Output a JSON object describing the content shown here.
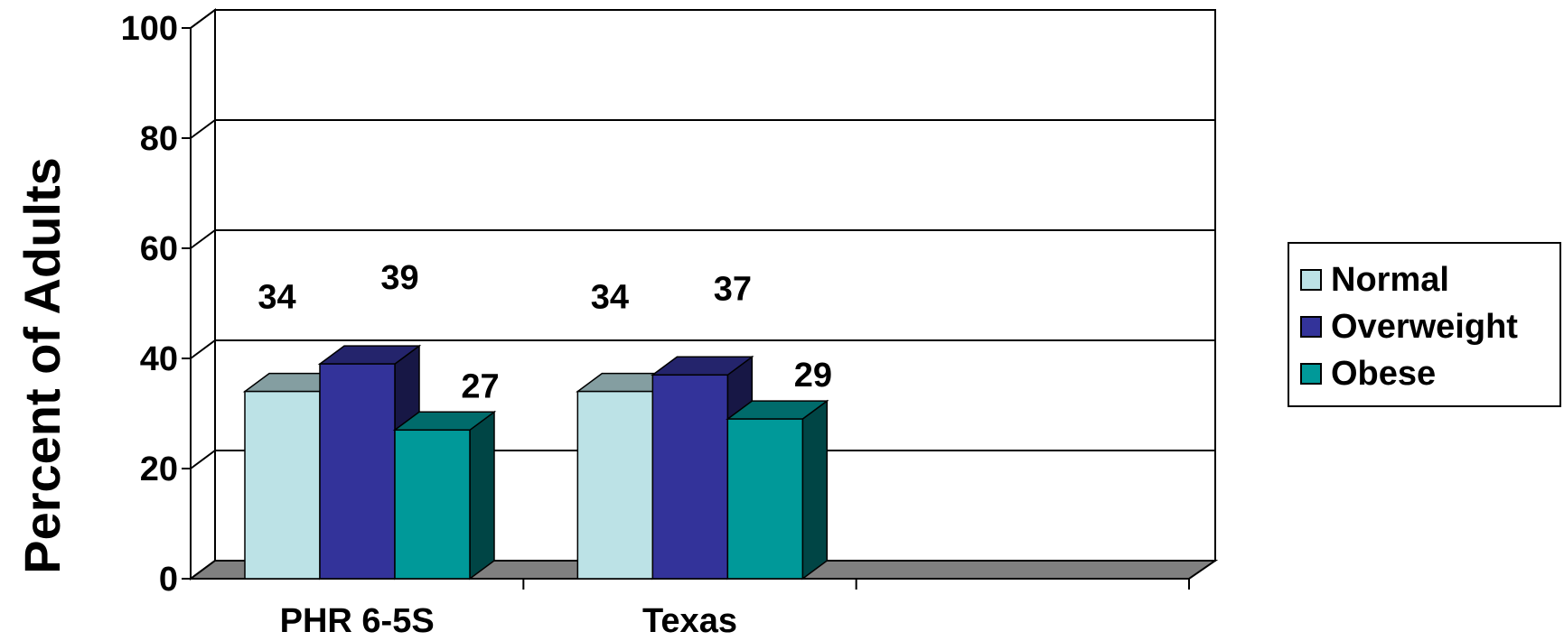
{
  "chart_data": {
    "type": "bar",
    "title": "",
    "xlabel": "",
    "ylabel": "Percent of Adults",
    "ylim": [
      0,
      100
    ],
    "yticks": [
      0,
      20,
      40,
      60,
      80,
      100
    ],
    "grid": true,
    "legend_position": "right",
    "categories": [
      "PHR 6-5S",
      "Texas"
    ],
    "series": [
      {
        "name": "Normal",
        "values": [
          34,
          34
        ],
        "color": "#BCE2E6"
      },
      {
        "name": "Overweight",
        "values": [
          39,
          37
        ],
        "color": "#33339A"
      },
      {
        "name": "Obese",
        "values": [
          27,
          29
        ],
        "color": "#009999"
      }
    ]
  }
}
